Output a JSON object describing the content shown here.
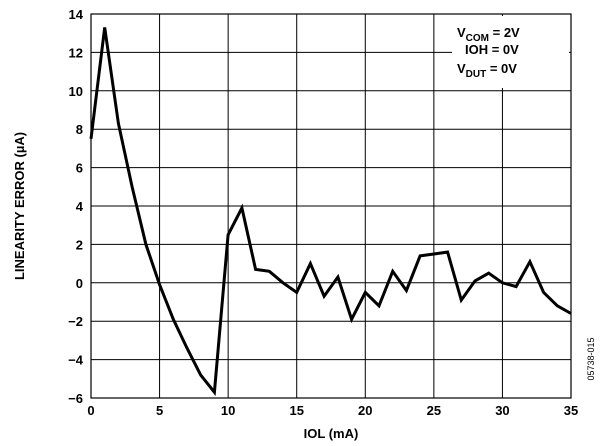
{
  "chart_data": {
    "type": "line",
    "xlabel": "IOL (mA)",
    "ylabel": "LINEARITY ERROR (µA)",
    "xlim": [
      0,
      35
    ],
    "ylim": [
      -6,
      14
    ],
    "xticks": [
      0,
      5,
      10,
      15,
      20,
      25,
      30,
      35
    ],
    "yticks": [
      -6,
      -4,
      -2,
      0,
      2,
      4,
      6,
      8,
      10,
      12,
      14
    ],
    "grid": true,
    "legend_position": "top-right",
    "annotations": [
      {
        "main": "V",
        "sub": "COM",
        "rest": " = 2V"
      },
      {
        "main": "IOH = 0V",
        "sub": "",
        "rest": ""
      },
      {
        "main": "V",
        "sub": "DUT",
        "rest": " = 0V"
      }
    ],
    "figure_id": "05738-015",
    "series": [
      {
        "x": [
          0,
          1,
          2,
          3,
          4,
          5,
          6,
          7,
          8,
          9,
          10,
          11,
          12,
          13,
          14,
          15,
          16,
          17,
          18,
          19,
          20,
          21,
          22,
          23,
          24,
          25,
          26,
          27,
          28,
          29,
          30,
          31,
          32,
          33,
          34,
          35
        ],
        "values": [
          7.5,
          13.3,
          8.3,
          5.0,
          2.0,
          -0.1,
          -1.9,
          -3.4,
          -4.8,
          -5.7,
          2.5,
          3.9,
          0.7,
          0.6,
          0.0,
          -0.5,
          1.0,
          -0.7,
          0.3,
          -1.9,
          -0.5,
          -1.2,
          0.6,
          -0.4,
          1.4,
          1.5,
          1.6,
          -0.9,
          0.1,
          0.5,
          0.0,
          -0.2,
          1.1,
          -0.5,
          -1.2,
          -1.6
        ]
      }
    ]
  }
}
